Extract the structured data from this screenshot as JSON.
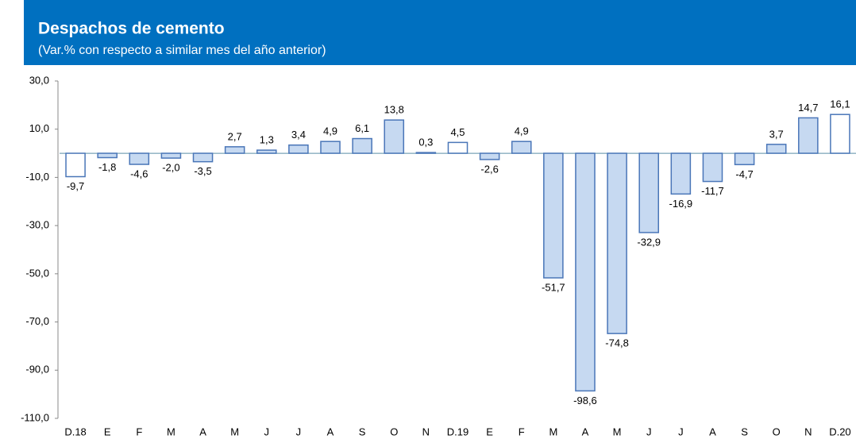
{
  "chart_data": {
    "type": "bar",
    "title": "Despachos de cemento",
    "subtitle": "(Var.% con respecto a similar mes del año anterior)",
    "categories": [
      "D.18",
      "E",
      "F",
      "M",
      "A",
      "M",
      "J",
      "J",
      "A",
      "S",
      "O",
      "N",
      "D.19",
      "E",
      "F",
      "M",
      "A",
      "M",
      "J",
      "J",
      "A",
      "S",
      "O",
      "N",
      "D.20"
    ],
    "values": [
      -9.7,
      -1.8,
      -4.6,
      -2.0,
      -3.5,
      2.7,
      1.3,
      3.4,
      4.9,
      6.1,
      13.8,
      0.3,
      4.5,
      -2.6,
      4.9,
      -51.7,
      -98.6,
      -74.8,
      -32.9,
      -16.9,
      -11.7,
      -4.7,
      3.7,
      14.7,
      16.1
    ],
    "value_labels": [
      "-9,7",
      "-1,8",
      "-4,6",
      "-2,0",
      "-3,5",
      "2,7",
      "1,3",
      "3,4",
      "4,9",
      "6,1",
      "13,8",
      "0,3",
      "4,5",
      "-2,6",
      "4,9",
      "-51,7",
      "-98,6",
      "-74,8",
      "-32,9",
      "-16,9",
      "-11,7",
      "-4,7",
      "3,7",
      "14,7",
      "16,1"
    ],
    "colors": [
      "#ffffff",
      "#c6d9f1",
      "#c6d9f1",
      "#c6d9f1",
      "#c6d9f1",
      "#c6d9f1",
      "#c6d9f1",
      "#c6d9f1",
      "#c6d9f1",
      "#c6d9f1",
      "#c6d9f1",
      "#c6d9f1",
      "#ffffff",
      "#c6d9f1",
      "#c6d9f1",
      "#c6d9f1",
      "#c6d9f1",
      "#c6d9f1",
      "#c6d9f1",
      "#c6d9f1",
      "#c6d9f1",
      "#c6d9f1",
      "#c6d9f1",
      "#c6d9f1",
      "#ffffff"
    ],
    "edge_color": "#4a76b8",
    "ylim": [
      -110,
      30
    ],
    "yticks": [
      {
        "value": 30,
        "label": "30,0"
      },
      {
        "value": 10,
        "label": "10,0"
      },
      {
        "value": -10,
        "label": "-10,0"
      },
      {
        "value": -30,
        "label": "-30,0"
      },
      {
        "value": -50,
        "label": "-50,0"
      },
      {
        "value": -70,
        "label": "-70,0"
      },
      {
        "value": -90,
        "label": "-90,0"
      },
      {
        "value": -110,
        "label": "-110,0"
      }
    ]
  }
}
